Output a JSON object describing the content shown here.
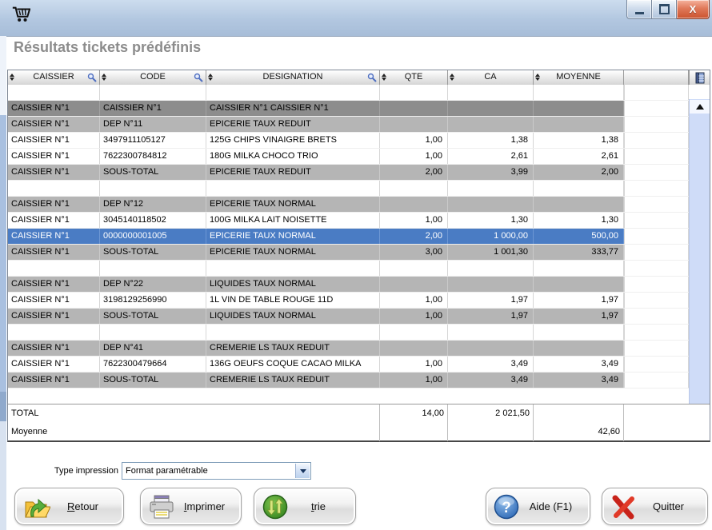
{
  "page_title": "Résultats tickets prédéfinis",
  "icons": {
    "titlebar": "shopping-cart-icon",
    "minimize": "minimize-icon",
    "maximize": "maximize-icon",
    "close": "close-icon",
    "column_search": "magnifier-icon",
    "column_sort": "sort-arrows-icon",
    "grid_corner": "table-export-icon",
    "scrollbar_up": "arrow-up-icon",
    "scrollbar_down": "arrow-down-icon",
    "combo": "dropdown-arrow-icon",
    "retour": "folder-return-icon",
    "imprimer": "printer-icon",
    "trie": "sync-arrows-icon",
    "aide": "help-question-icon",
    "quitter": "red-x-icon"
  },
  "colors": {
    "selected_row": "#4a7cc4",
    "group_row": "#8d8d8d",
    "band_row": "#b5b5b5",
    "scrollbar_track": "#cfdcf8",
    "titlebar": "#b9cce4",
    "close_button": "#d0552f",
    "title_text": "#8c8c8c"
  },
  "table": {
    "columns": [
      {
        "label": "CAISSIER",
        "searchable": true
      },
      {
        "label": "CODE",
        "searchable": true
      },
      {
        "label": "DESIGNATION",
        "searchable": true
      },
      {
        "label": "QTE",
        "searchable": false
      },
      {
        "label": "CA",
        "searchable": false
      },
      {
        "label": "MOYENNE",
        "searchable": false
      }
    ],
    "rows": [
      {
        "type": "blank",
        "caissier": "",
        "code": "",
        "designation": "",
        "qte": "",
        "ca": "",
        "moyenne": ""
      },
      {
        "type": "group",
        "caissier": "CAISSIER N°1",
        "code": "CAISSIER N°1",
        "designation": "CAISSIER N°1 CAISSIER N°1",
        "qte": "",
        "ca": "",
        "moyenne": ""
      },
      {
        "type": "dept",
        "caissier": "CAISSIER N°1",
        "code": "DEP N°11",
        "designation": "EPICERIE TAUX REDUIT",
        "qte": "",
        "ca": "",
        "moyenne": ""
      },
      {
        "type": "item",
        "caissier": "CAISSIER N°1",
        "code": "3497911105127",
        "designation": "125G CHIPS VINAIGRE BRETS",
        "qte": "1,00",
        "ca": "1,38",
        "moyenne": "1,38"
      },
      {
        "type": "item",
        "caissier": "CAISSIER N°1",
        "code": "7622300784812",
        "designation": "180G MILKA CHOCO TRIO",
        "qte": "1,00",
        "ca": "2,61",
        "moyenne": "2,61"
      },
      {
        "type": "subtotal",
        "caissier": "CAISSIER N°1",
        "code": "SOUS-TOTAL",
        "designation": "EPICERIE TAUX REDUIT",
        "qte": "2,00",
        "ca": "3,99",
        "moyenne": "2,00"
      },
      {
        "type": "blank",
        "caissier": "",
        "code": "",
        "designation": "",
        "qte": "",
        "ca": "",
        "moyenne": ""
      },
      {
        "type": "dept",
        "caissier": "CAISSIER N°1",
        "code": "DEP N°12",
        "designation": "EPICERIE TAUX NORMAL",
        "qte": "",
        "ca": "",
        "moyenne": ""
      },
      {
        "type": "item",
        "caissier": "CAISSIER N°1",
        "code": "3045140118502",
        "designation": "100G MILKA LAIT NOISETTE",
        "qte": "1,00",
        "ca": "1,30",
        "moyenne": "1,30"
      },
      {
        "type": "selected",
        "caissier": "CAISSIER N°1",
        "code": "0000000001005",
        "designation": "EPICERIE TAUX NORMAL",
        "qte": "2,00",
        "ca": "1 000,00",
        "moyenne": "500,00"
      },
      {
        "type": "subtotal",
        "caissier": "CAISSIER N°1",
        "code": "SOUS-TOTAL",
        "designation": "EPICERIE TAUX NORMAL",
        "qte": "3,00",
        "ca": "1 001,30",
        "moyenne": "333,77"
      },
      {
        "type": "blank",
        "caissier": "",
        "code": "",
        "designation": "",
        "qte": "",
        "ca": "",
        "moyenne": ""
      },
      {
        "type": "dept",
        "caissier": "CAISSIER N°1",
        "code": "DEP N°22",
        "designation": "LIQUIDES TAUX NORMAL",
        "qte": "",
        "ca": "",
        "moyenne": ""
      },
      {
        "type": "item",
        "caissier": "CAISSIER N°1",
        "code": "3198129256990",
        "designation": "1L VIN DE TABLE ROUGE 11D",
        "qte": "1,00",
        "ca": "1,97",
        "moyenne": "1,97"
      },
      {
        "type": "subtotal",
        "caissier": "CAISSIER N°1",
        "code": "SOUS-TOTAL",
        "designation": "LIQUIDES TAUX NORMAL",
        "qte": "1,00",
        "ca": "1,97",
        "moyenne": "1,97"
      },
      {
        "type": "blank",
        "caissier": "",
        "code": "",
        "designation": "",
        "qte": "",
        "ca": "",
        "moyenne": ""
      },
      {
        "type": "dept",
        "caissier": "CAISSIER N°1",
        "code": "DEP N°41",
        "designation": "CREMERIE LS TAUX REDUIT",
        "qte": "",
        "ca": "",
        "moyenne": ""
      },
      {
        "type": "item",
        "caissier": "CAISSIER N°1",
        "code": "7622300479664",
        "designation": "136G OEUFS COQUE CACAO MILKA",
        "qte": "1,00",
        "ca": "3,49",
        "moyenne": "3,49"
      },
      {
        "type": "subtotal",
        "caissier": "CAISSIER N°1",
        "code": "SOUS-TOTAL",
        "designation": "CREMERIE LS TAUX REDUIT",
        "qte": "1,00",
        "ca": "3,49",
        "moyenne": "3,49"
      }
    ],
    "footer": {
      "total_label": "TOTAL",
      "total_qte": "14,00",
      "total_ca": "2 021,50",
      "moyenne_label": "Moyenne",
      "moyenne_value": "42,60"
    }
  },
  "print": {
    "label": "Type impression",
    "value": "Format paramétrable"
  },
  "buttons": {
    "retour": "Retour",
    "imprimer": "Imprimer",
    "trie": "trie",
    "aide": "Aide (F1)",
    "quitter": "Quitter"
  }
}
